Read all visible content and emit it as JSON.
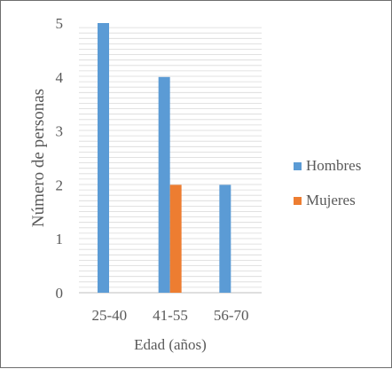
{
  "chart_data": {
    "type": "bar",
    "title": "",
    "categories": [
      "25-40",
      "41-55",
      "56-70"
    ],
    "series": [
      {
        "name": "Hombres",
        "values": [
          5,
          4,
          2
        ],
        "color": "#5b9bd5"
      },
      {
        "name": "Mujeres",
        "values": [
          0,
          2,
          0
        ],
        "color": "#ed7d31"
      }
    ],
    "xlabel": "Edad (años)",
    "ylabel": "Número de personas",
    "ylim": [
      0,
      5
    ],
    "yticks": [
      0,
      1,
      2,
      3,
      4,
      5
    ],
    "grid": true,
    "grid_color": "#d9d9d9",
    "legend_position": "right"
  }
}
